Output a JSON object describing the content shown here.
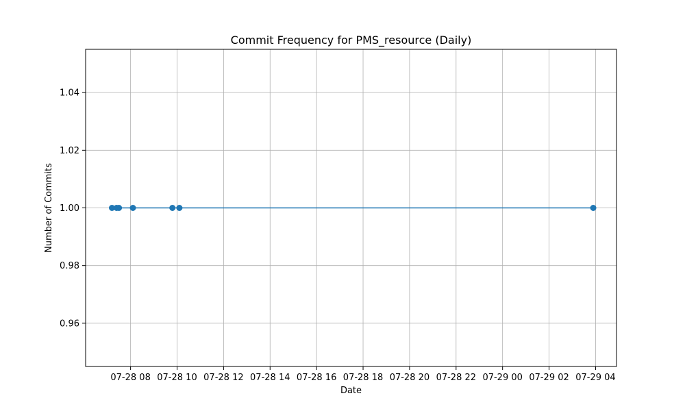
{
  "chart_data": {
    "type": "line",
    "title": "Commit Frequency for PMS_resource (Daily)",
    "xlabel": "Date",
    "ylabel": "Number of Commits",
    "x_ticks": [
      "07-28 08",
      "07-28 10",
      "07-28 12",
      "07-28 14",
      "07-28 16",
      "07-28 18",
      "07-28 20",
      "07-28 22",
      "07-29 00",
      "07-29 02",
      "07-29 04"
    ],
    "y_ticks": [
      "0.96",
      "0.98",
      "1.00",
      "1.02",
      "1.04"
    ],
    "xlim": [
      "2024-07-28 06:04",
      "2024-07-29 04:54"
    ],
    "ylim": [
      0.945,
      1.055
    ],
    "grid": true,
    "legend": "none",
    "color": "#1f77b4",
    "series": [
      {
        "x": [
          "2024-07-28 07:12",
          "2024-07-28 07:24",
          "2024-07-28 07:30",
          "2024-07-28 08:06",
          "2024-07-28 09:48",
          "2024-07-28 10:06",
          "2024-07-29 03:54"
        ],
        "values": [
          1,
          1,
          1,
          1,
          1,
          1,
          1
        ]
      }
    ]
  }
}
